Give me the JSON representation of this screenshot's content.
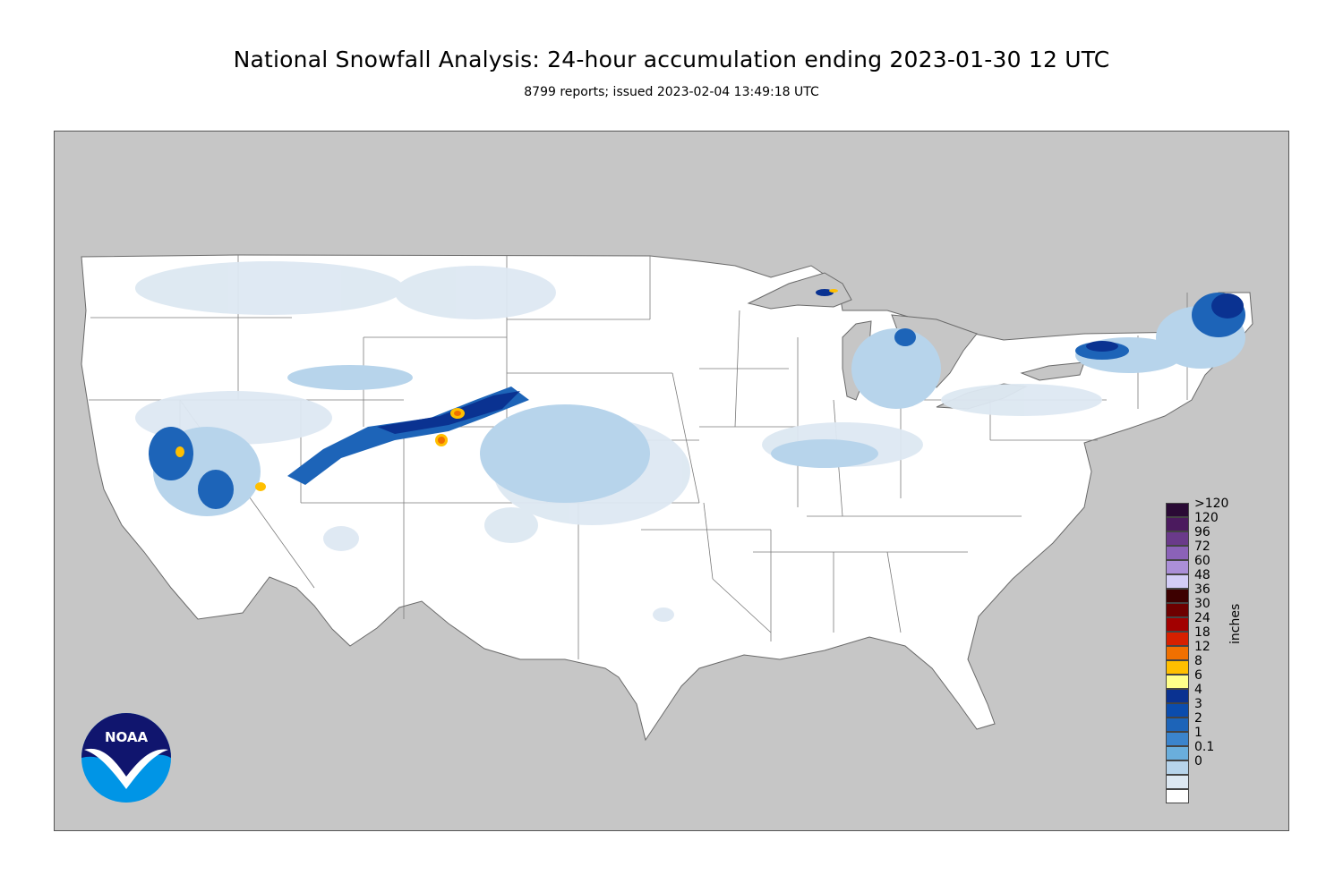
{
  "header": {
    "title": "National Snowfall Analysis: 24-hour accumulation ending 2023-01-30 12 UTC",
    "subtitle": "8799 reports; issued 2023-02-04 13:49:18 UTC"
  },
  "colors": {
    "land_outside": "#c6c6c6",
    "land_conus": "#ffffff",
    "boundary": "#6a6a6a",
    "frame": "#555555"
  },
  "legend": {
    "unit": "inches",
    "levels": [
      {
        "label": ">120",
        "color": "#2a0a35"
      },
      {
        "label": "120",
        "color": "#4b1a5e"
      },
      {
        "label": "96",
        "color": "#6a3a8a"
      },
      {
        "label": "72",
        "color": "#8b62b8"
      },
      {
        "label": "60",
        "color": "#ab8fd8"
      },
      {
        "label": "48",
        "color": "#d3cdf7"
      },
      {
        "label": "36",
        "color": "#3d0000"
      },
      {
        "label": "30",
        "color": "#6d0000"
      },
      {
        "label": "24",
        "color": "#a20000"
      },
      {
        "label": "18",
        "color": "#d62000"
      },
      {
        "label": "12",
        "color": "#f07000"
      },
      {
        "label": "8",
        "color": "#ffbf00"
      },
      {
        "label": "6",
        "color": "#ffff8a"
      },
      {
        "label": "4",
        "color": "#0a3291"
      },
      {
        "label": "3",
        "color": "#0b4cad"
      },
      {
        "label": "2",
        "color": "#1d64b8"
      },
      {
        "label": "1",
        "color": "#3b84cc"
      },
      {
        "label": "0.1",
        "color": "#6aaedc"
      },
      {
        "label": "0",
        "color": "#b7d4eb"
      }
    ],
    "extra_swatches": [
      "#dde8f2",
      "#ffffff"
    ]
  },
  "logo": {
    "text": "NOAA",
    "color_dark": "#10156e",
    "color_light": "#0095e6"
  }
}
